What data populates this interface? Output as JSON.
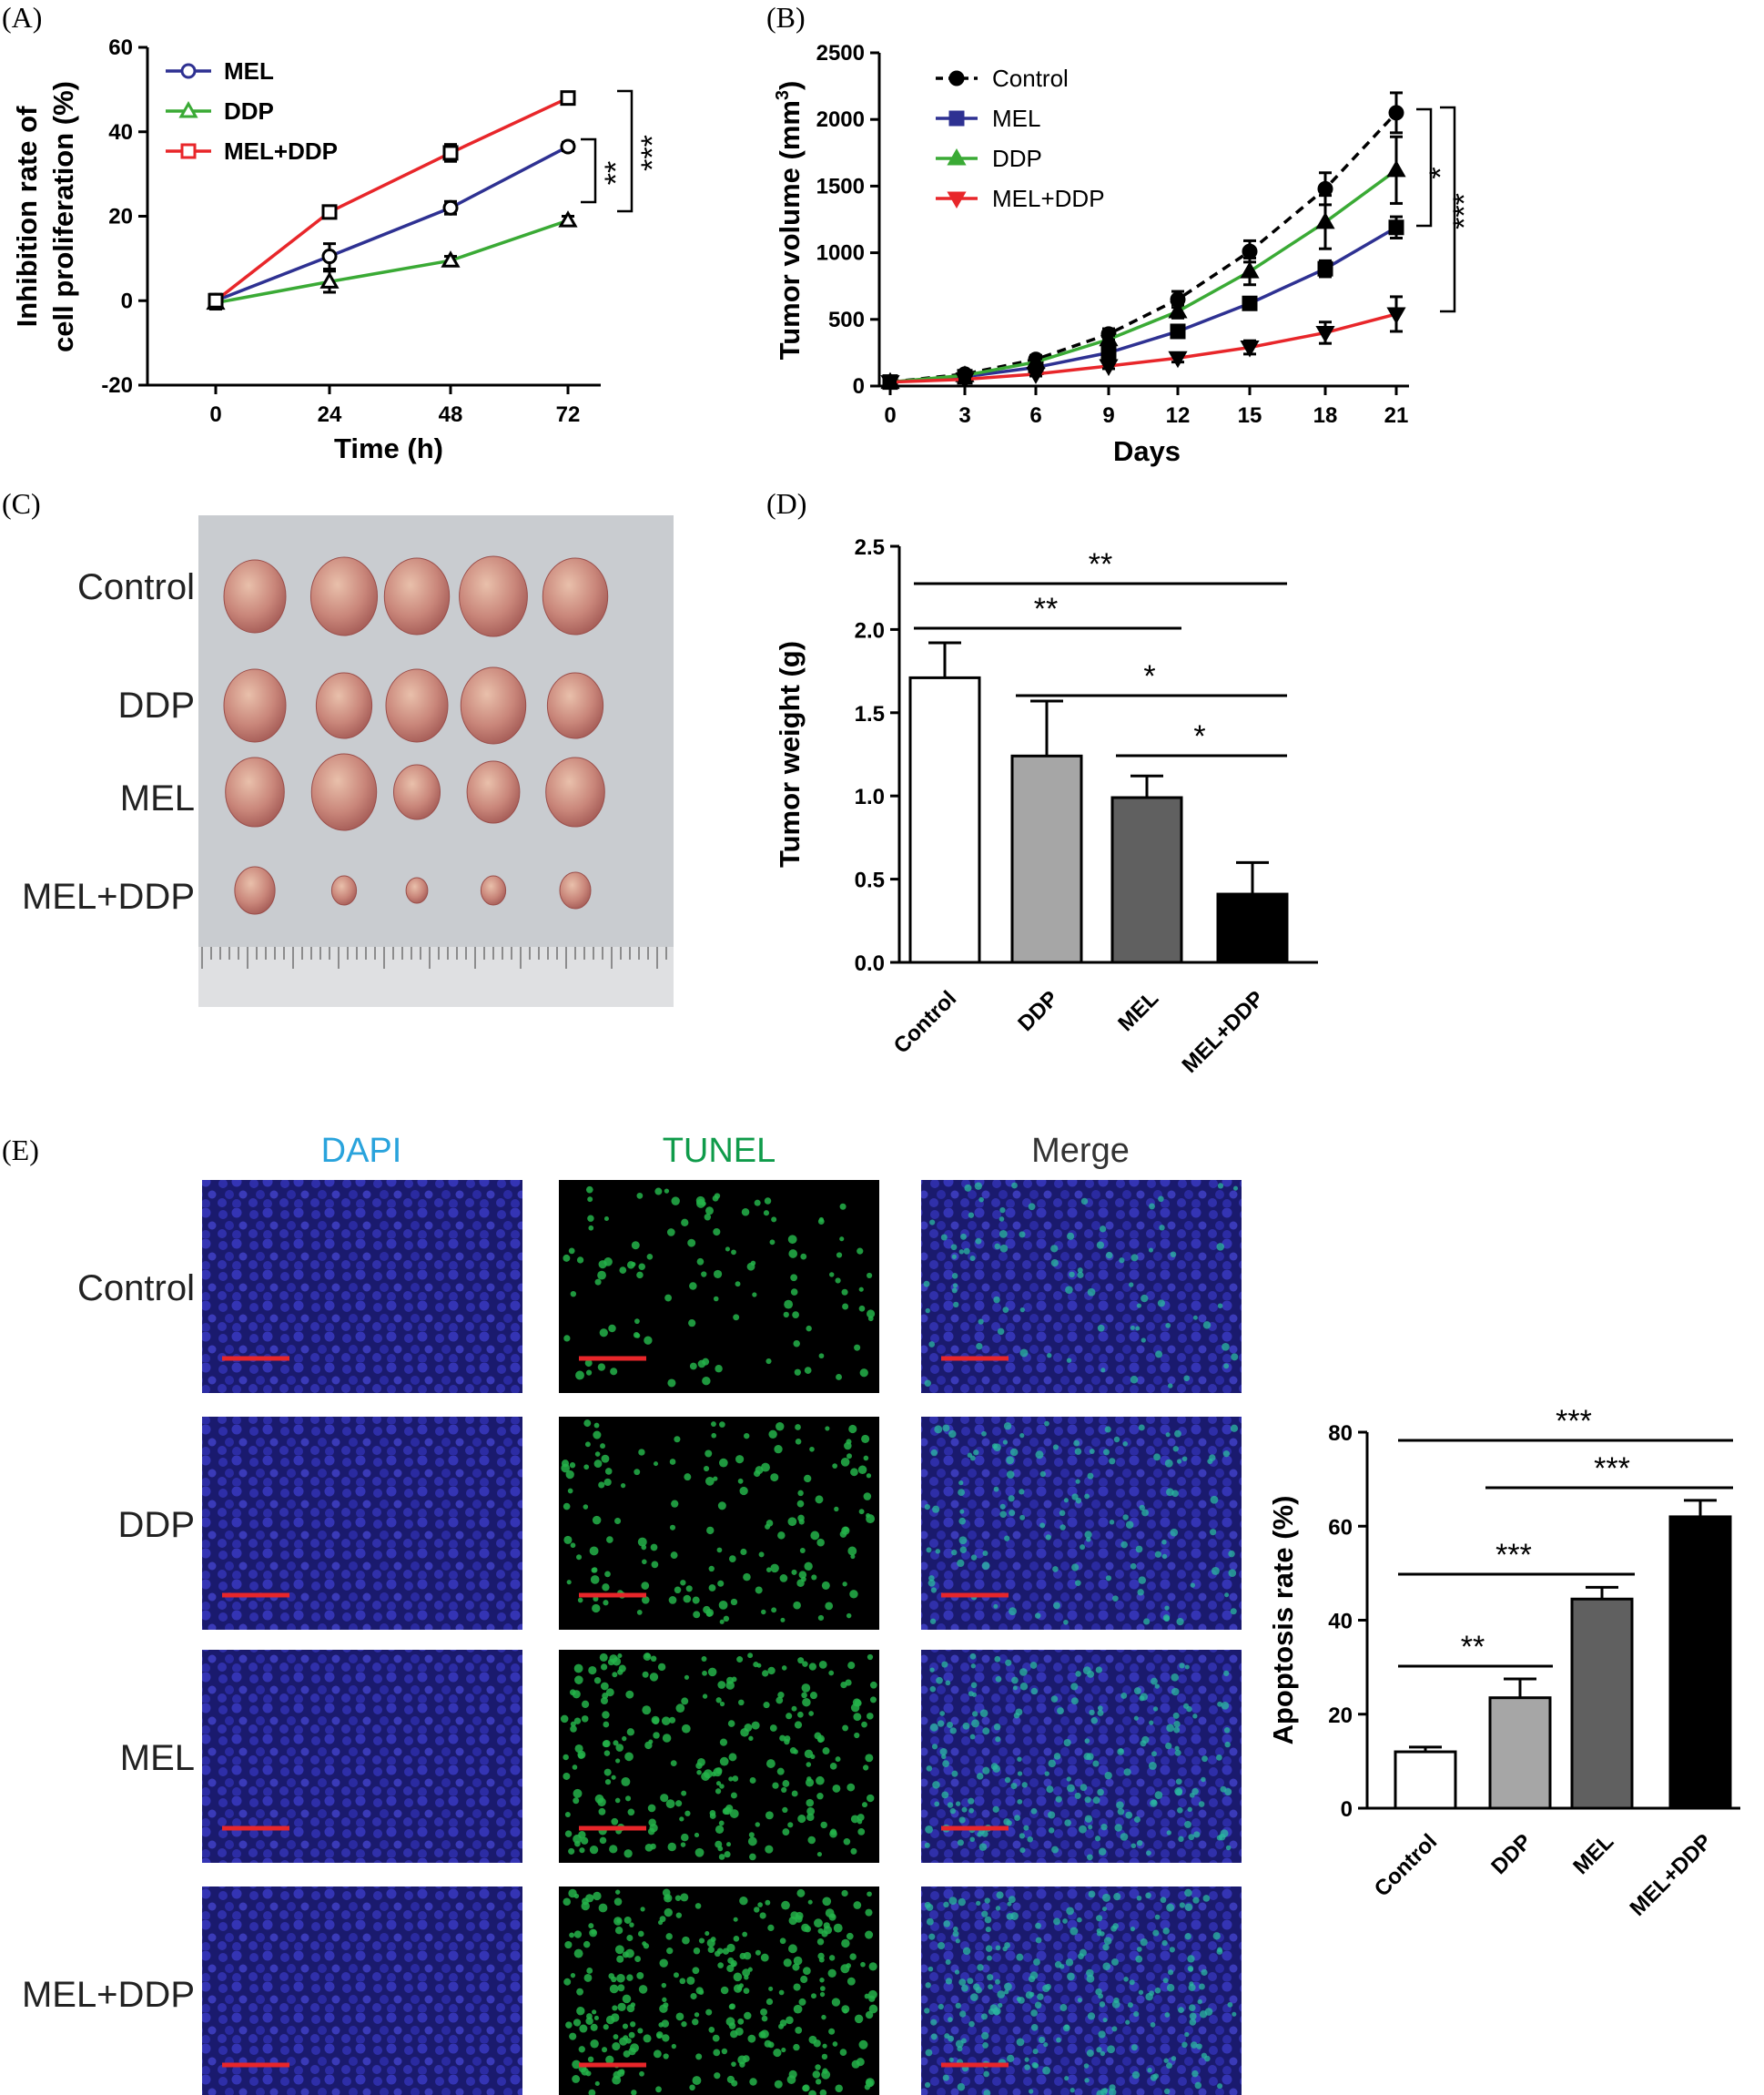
{
  "panels": {
    "A": "(A)",
    "B": "(B)",
    "C": "(C)",
    "D": "(D)",
    "E": "(E)"
  },
  "colors": {
    "mel": "#2e3192",
    "ddp": "#3aaa35",
    "combo": "#e8262a",
    "control": "#000000",
    "dapi_label": "#29a3dc",
    "tunel_label": "#0f9b4a",
    "merge_label": "#333333",
    "scale_bar": "#e8262a"
  },
  "chart_data": [
    {
      "id": "A",
      "type": "line",
      "xlabel": "Time (h)",
      "ylabel_line1": "Inhibition rate of",
      "ylabel_line2": "cell proliferation (%)",
      "x": [
        0,
        24,
        48,
        72
      ],
      "xticks": [
        "0",
        "24",
        "48",
        "72"
      ],
      "yticks": [
        "-20",
        "0",
        "20",
        "40",
        "60"
      ],
      "ylim": [
        -20,
        60
      ],
      "series": [
        {
          "name": "MEL",
          "values": [
            0,
            10.5,
            22,
            36.5
          ],
          "err": [
            1.5,
            3,
            1.5,
            1
          ],
          "marker": "circle"
        },
        {
          "name": "DDP",
          "values": [
            -0.5,
            4.5,
            9.5,
            19
          ],
          "err": [
            1.5,
            2.5,
            1,
            1
          ],
          "marker": "triangle"
        },
        {
          "name": "MEL+DDP",
          "values": [
            0,
            21,
            35,
            48
          ],
          "err": [
            1.5,
            1,
            2,
            1
          ],
          "marker": "square"
        }
      ],
      "annotations": [
        "**",
        "***"
      ]
    },
    {
      "id": "B",
      "type": "line",
      "xlabel": "Days",
      "ylabel": "Tumor volume (mm",
      "ylabel_sup": "3",
      "ylabel_close": ")",
      "x": [
        0,
        3,
        6,
        9,
        12,
        15,
        18,
        21
      ],
      "xticks": [
        "0",
        "3",
        "6",
        "9",
        "12",
        "15",
        "18",
        "21"
      ],
      "yticks": [
        "0",
        "500",
        "1000",
        "1500",
        "2000",
        "2500"
      ],
      "ylim": [
        0,
        2500
      ],
      "series": [
        {
          "name": "Control",
          "values": [
            30,
            90,
            200,
            390,
            650,
            1010,
            1480,
            2050
          ],
          "err": [
            10,
            20,
            30,
            40,
            60,
            80,
            120,
            150
          ],
          "marker": "circle",
          "dashed": true
        },
        {
          "name": "MEL",
          "values": [
            30,
            70,
            140,
            250,
            410,
            620,
            880,
            1190
          ],
          "err": [
            10,
            15,
            20,
            25,
            40,
            40,
            60,
            80
          ],
          "marker": "square"
        },
        {
          "name": "DDP",
          "values": [
            30,
            80,
            180,
            350,
            560,
            860,
            1230,
            1620
          ],
          "err": [
            10,
            15,
            25,
            30,
            50,
            100,
            200,
            250
          ],
          "marker": "triangle"
        },
        {
          "name": "MEL+DDP",
          "values": [
            30,
            50,
            90,
            150,
            210,
            290,
            400,
            540
          ],
          "err": [
            10,
            10,
            15,
            20,
            30,
            50,
            80,
            130
          ],
          "marker": "invtriangle"
        }
      ],
      "annotations": [
        "*",
        "***"
      ]
    },
    {
      "id": "D",
      "type": "bar",
      "ylabel": "Tumor weight (g)",
      "categories": [
        "Control",
        "DDP",
        "MEL",
        "MEL+DDP"
      ],
      "values": [
        1.71,
        1.24,
        0.99,
        0.41
      ],
      "err": [
        0.21,
        0.33,
        0.13,
        0.19
      ],
      "fills": [
        "#ffffff",
        "#a6a6a6",
        "#606060",
        "#000000"
      ],
      "yticks": [
        "0.0",
        "0.5",
        "1.0",
        "1.5",
        "2.0",
        "2.5"
      ],
      "ylim": [
        0,
        2.5
      ],
      "comparisons": [
        {
          "from": 0,
          "to": 3,
          "label": "**"
        },
        {
          "from": 0,
          "to": 2,
          "label": "**"
        },
        {
          "from": 1,
          "to": 3,
          "label": "*"
        },
        {
          "from": 2,
          "to": 3,
          "label": "*"
        }
      ]
    },
    {
      "id": "E",
      "type": "bar",
      "ylabel": "Apoptosis rate (%)",
      "categories": [
        "Control",
        "DDP",
        "MEL",
        "MEL+DDP"
      ],
      "values": [
        12,
        23.5,
        44.5,
        62
      ],
      "err": [
        1,
        4,
        2.5,
        3.5
      ],
      "fills": [
        "#ffffff",
        "#a6a6a6",
        "#606060",
        "#000000"
      ],
      "yticks": [
        "0",
        "20",
        "40",
        "60",
        "80"
      ],
      "ylim": [
        0,
        80
      ],
      "comparisons": [
        {
          "from": 0,
          "to": 3,
          "label": "***"
        },
        {
          "from": 1,
          "to": 3,
          "label": "***"
        },
        {
          "from": 0,
          "to": 2,
          "label": "***"
        },
        {
          "from": 0,
          "to": 1,
          "label": "**"
        }
      ]
    }
  ],
  "photo": {
    "rows": [
      "Control",
      "DDP",
      "MEL",
      "MEL+DDP"
    ]
  },
  "microscopy": {
    "columns": [
      "DAPI",
      "TUNEL",
      "Merge"
    ],
    "rows": [
      "Control",
      "DDP",
      "MEL",
      "MEL+DDP"
    ],
    "tunel_density": [
      0.25,
      0.45,
      0.8,
      1.0
    ]
  }
}
